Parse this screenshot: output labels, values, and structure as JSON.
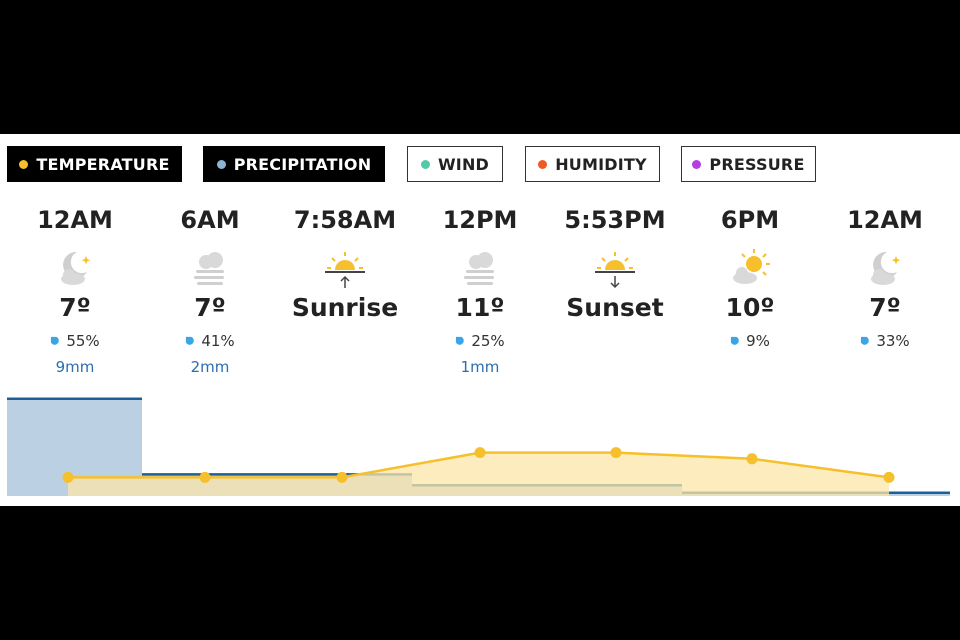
{
  "tabs": [
    {
      "label": "TEMPERATURE",
      "dot_color": "#f5c02c",
      "active": true
    },
    {
      "label": "PRECIPITATION",
      "dot_color": "#8fb3d6",
      "active": true
    },
    {
      "label": "WIND",
      "dot_color": "#52c9a8",
      "active": false
    },
    {
      "label": "HUMIDITY",
      "dot_color": "#ee5a24",
      "active": false
    },
    {
      "label": "PRESSURE",
      "dot_color": "#b43ee0",
      "active": false
    }
  ],
  "columns": [
    {
      "time": "12AM",
      "icon": "moon-cloud-icon",
      "value": "7º",
      "precip_chance": "55%",
      "precip_amount": "9mm"
    },
    {
      "time": "6AM",
      "icon": "fog-cloud-icon",
      "value": "7º",
      "precip_chance": "41%",
      "precip_amount": "2mm"
    },
    {
      "time": "7:58AM",
      "icon": "sunrise-icon",
      "value": "Sunrise",
      "precip_chance": "",
      "precip_amount": ""
    },
    {
      "time": "12PM",
      "icon": "fog-cloud-icon",
      "value": "11º",
      "precip_chance": "25%",
      "precip_amount": "1mm"
    },
    {
      "time": "5:53PM",
      "icon": "sunset-icon",
      "value": "Sunset",
      "precip_chance": "",
      "precip_amount": ""
    },
    {
      "time": "6PM",
      "icon": "sun-cloud-icon",
      "value": "10º",
      "precip_chance": "9%",
      "precip_amount": ""
    },
    {
      "time": "12AM",
      "icon": "moon-cloud-icon",
      "value": "7º",
      "precip_chance": "33%",
      "precip_amount": ""
    }
  ],
  "colors": {
    "temperature_line": "#f5c02c",
    "temperature_fill": "#fbe6a8",
    "precip_line": "#1f5f99",
    "precip_fill": "#b7cde2",
    "drop": "#3aa6e8",
    "precip_amount_text": "#2a6db3"
  },
  "chart_data": {
    "type": "area",
    "x": [
      "12AM",
      "6AM",
      "7:58AM",
      "12PM",
      "5:53PM",
      "6PM",
      "12AM"
    ],
    "series": [
      {
        "name": "TEMPERATURE",
        "values": [
          7,
          7,
          7,
          11,
          11,
          10,
          7
        ]
      },
      {
        "name": "PRECIPITATION",
        "values": [
          9,
          2,
          2,
          1,
          1,
          0.3,
          0.3
        ]
      }
    ]
  }
}
